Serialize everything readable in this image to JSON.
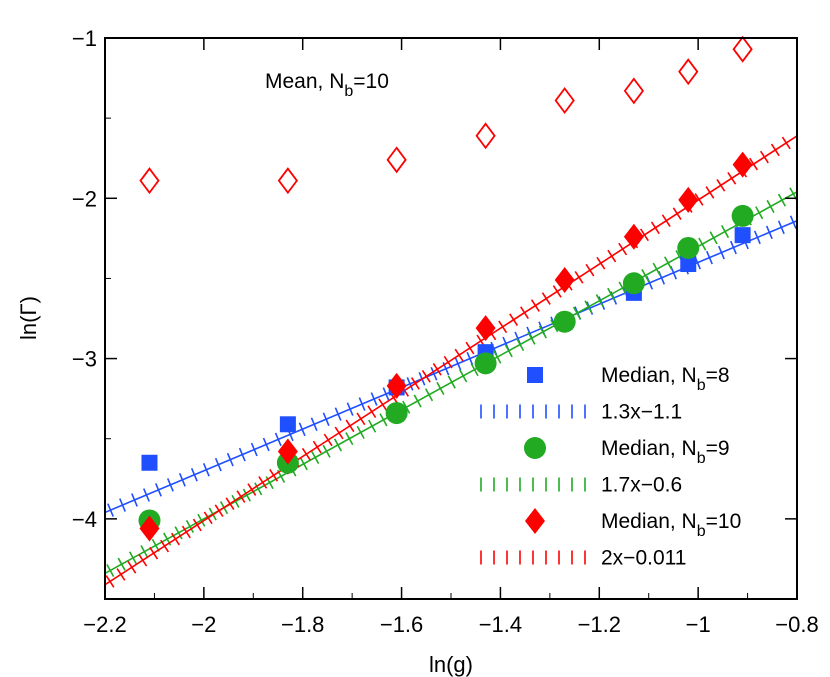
{
  "chart_data": {
    "type": "scatter",
    "xlabel": "ln(g)",
    "ylabel": "ln(Γ)",
    "xlim": [
      -2.2,
      -0.8
    ],
    "ylim": [
      -4.5,
      -1
    ],
    "xticks": [
      "−2.2",
      "−2",
      "−1.8",
      "−1.6",
      "−1.4",
      "−1.2",
      "−1",
      "−0.8"
    ],
    "yticks": [
      "−1",
      "−2",
      "−3",
      "−4"
    ],
    "grid": false,
    "legend_placement": "bottom-right",
    "annotation": {
      "prefix": "Mean, N",
      "sub": "b",
      "suffix": "=10"
    },
    "x": [
      -2.11,
      -1.83,
      -1.61,
      -1.43,
      -1.27,
      -1.13,
      -1.02,
      -0.91
    ],
    "series": [
      {
        "name_prefix": "Mean, N",
        "name_sub": "b",
        "name_suffix": "=10",
        "kind": "markers",
        "marker": "diamond-open",
        "color": "#ff0000",
        "in_legend": false,
        "values": [
          -1.89,
          -1.89,
          -1.76,
          -1.61,
          -1.39,
          -1.33,
          -1.21,
          -1.07
        ],
        "x": [
          -2.11,
          -1.83,
          -1.61,
          -1.43,
          -1.27,
          -1.13,
          -1.02,
          -0.91
        ]
      },
      {
        "name_prefix": "Median, N",
        "name_sub": "b",
        "name_suffix": "=8",
        "kind": "markers",
        "marker": "square",
        "color": "#1f4fff",
        "in_legend": true,
        "values": [
          -3.65,
          -3.41,
          -3.18,
          -2.96,
          -2.77,
          -2.59,
          -2.41,
          -2.23
        ]
      },
      {
        "name": "1.3x−1.1",
        "kind": "fit",
        "color": "#1f4fff",
        "in_legend": true,
        "slope": 1.3,
        "intercept": -1.1
      },
      {
        "name_prefix": "Median, N",
        "name_sub": "b",
        "name_suffix": "=9",
        "kind": "markers",
        "marker": "circle",
        "color": "#22aa22",
        "in_legend": true,
        "values": [
          -4.01,
          -3.65,
          -3.34,
          -3.03,
          -2.77,
          -2.53,
          -2.31,
          -2.11
        ]
      },
      {
        "name": "1.7x−0.6",
        "kind": "fit",
        "color": "#22aa22",
        "in_legend": true,
        "slope": 1.7,
        "intercept": -0.6
      },
      {
        "name_prefix": "Median, N",
        "name_sub": "b",
        "name_suffix": "=10",
        "kind": "markers",
        "marker": "diamond",
        "color": "#ff0000",
        "in_legend": true,
        "values": [
          -4.06,
          -3.58,
          -3.17,
          -2.81,
          -2.51,
          -2.24,
          -2.01,
          -1.79
        ]
      },
      {
        "name": "2x−0.011",
        "kind": "fit",
        "color": "#ff0000",
        "in_legend": true,
        "slope": 2.0,
        "intercept": -0.011
      }
    ]
  }
}
